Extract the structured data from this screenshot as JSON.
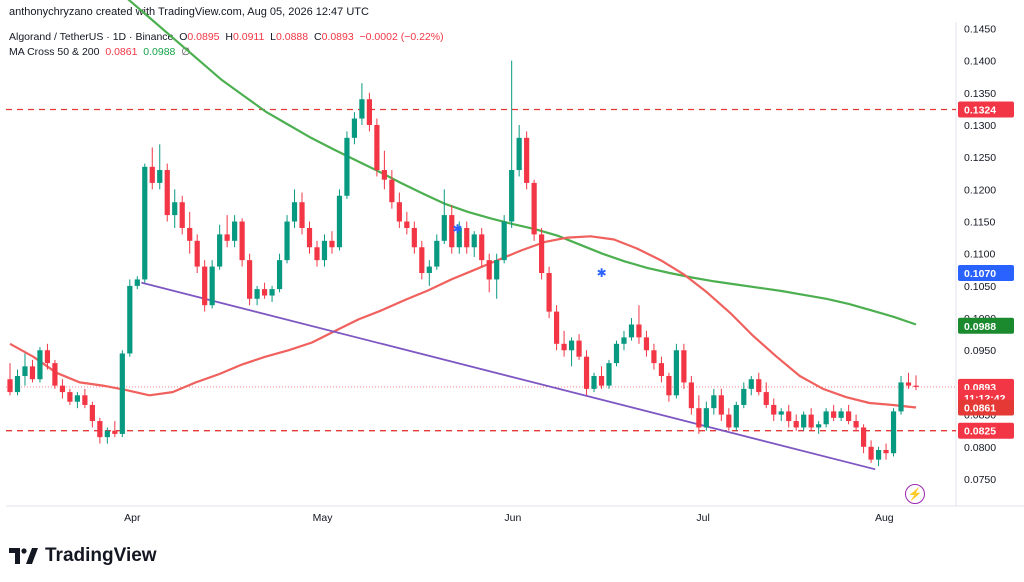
{
  "caption": "anthonychryzano created with TradingView.com, Aug 05, 2026 12:47 UTC",
  "legend": {
    "symbol": "Algorand / TetherUS · 1D · Binance",
    "o_label": "O",
    "o": "0.0895",
    "h_label": "H",
    "h": "0.0911",
    "l_label": "L",
    "l": "0.0888",
    "c_label": "C",
    "c": "0.0893",
    "change": "−0.0002 (−0.22%)",
    "ma_label": "MA Cross 50 & 200",
    "ma50": "0.0861",
    "ma200": "0.0988",
    "ma_suffix": "∅"
  },
  "brand": "TradingView",
  "colors": {
    "up": "#089981",
    "down": "#f23645",
    "ma50": "#f0605d",
    "ma200": "#4caf50",
    "trendline": "#7e57c2",
    "level": "#e53935",
    "cross_marker": "#2962ff",
    "last_price_tag": "#f23645",
    "ma50_tag": "#e53935",
    "ma200_tag": "#1b8a2f",
    "level_tag_1070": "#2962ff"
  },
  "chart_data": {
    "type": "candlestick",
    "y_axis_ticks": [
      "0.1450",
      "0.1400",
      "0.1350",
      "0.1300",
      "0.1250",
      "0.1200",
      "0.1150",
      "0.1100",
      "0.1050",
      "0.1000",
      "0.0950",
      "0.0900",
      "0.0850",
      "0.0800",
      "0.0750"
    ],
    "x_axis_ticks": [
      "Apr",
      "May",
      "Jun",
      "Jul",
      "Aug"
    ],
    "ylim": [
      0.0708,
      0.146
    ],
    "horizontal_levels": [
      0.1324,
      0.0825
    ],
    "price_tags": [
      {
        "label": "0.1324",
        "value": 0.1324,
        "color": "#f23645"
      },
      {
        "label": "0.1070",
        "value": 0.107,
        "color": "#2962ff"
      },
      {
        "label": "0.0988",
        "value": 0.0988,
        "color": "#1b8a2f"
      },
      {
        "label": "0.0893",
        "value": 0.0893,
        "color": "#f23645"
      },
      {
        "label": "11:12:42",
        "value": 0.0876,
        "color": "#f23645"
      },
      {
        "label": "0.0861",
        "value": 0.0861,
        "color": "#e53935"
      },
      {
        "label": "0.0825",
        "value": 0.0825,
        "color": "#f23645"
      }
    ],
    "trendline": [
      [
        0.0,
        0.1055
      ],
      [
        1.0,
        0.0765
      ]
    ],
    "ma200": [
      0.152,
      0.149,
      0.146,
      0.143,
      0.14,
      0.137,
      0.1345,
      0.132,
      0.13,
      0.128,
      0.1262,
      0.1245,
      0.1228,
      0.121,
      0.1193,
      0.1177,
      0.1165,
      0.1155,
      0.1146,
      0.1138,
      0.1128,
      0.1114,
      0.11,
      0.1088,
      0.1078,
      0.107,
      0.1063,
      0.1057,
      0.1052,
      0.1047,
      0.1042,
      0.1036,
      0.103,
      0.1022,
      0.1012,
      0.1002,
      0.099
    ],
    "ma50": [
      0.096,
      0.094,
      0.0915,
      0.09,
      0.0895,
      0.0888,
      0.088,
      0.0885,
      0.09,
      0.0913,
      0.0928,
      0.094,
      0.095,
      0.0962,
      0.098,
      0.0998,
      0.1012,
      0.1028,
      0.1043,
      0.106,
      0.1075,
      0.109,
      0.1105,
      0.1118,
      0.1125,
      0.1127,
      0.1122,
      0.1108,
      0.109,
      0.1068,
      0.104,
      0.1008,
      0.0972,
      0.094,
      0.091,
      0.089,
      0.0877,
      0.0868,
      0.0865,
      0.0861
    ],
    "cross_markers": [
      [
        0.494,
        0.1138
      ],
      [
        0.653,
        0.107
      ]
    ],
    "candles": [
      [
        0.0905,
        0.093,
        0.088,
        0.0885
      ],
      [
        0.0885,
        0.092,
        0.088,
        0.091
      ],
      [
        0.091,
        0.0945,
        0.0895,
        0.0925
      ],
      [
        0.0925,
        0.0935,
        0.09,
        0.0905
      ],
      [
        0.0905,
        0.0955,
        0.09,
        0.095
      ],
      [
        0.095,
        0.096,
        0.092,
        0.093
      ],
      [
        0.093,
        0.0935,
        0.089,
        0.0895
      ],
      [
        0.0895,
        0.0905,
        0.0875,
        0.0885
      ],
      [
        0.0885,
        0.089,
        0.0865,
        0.087
      ],
      [
        0.087,
        0.0885,
        0.086,
        0.088
      ],
      [
        0.088,
        0.089,
        0.086,
        0.0865
      ],
      [
        0.0865,
        0.087,
        0.083,
        0.084
      ],
      [
        0.084,
        0.0845,
        0.0805,
        0.0815
      ],
      [
        0.0815,
        0.083,
        0.0805,
        0.0825
      ],
      [
        0.0825,
        0.084,
        0.0815,
        0.082
      ],
      [
        0.082,
        0.095,
        0.0815,
        0.0945
      ],
      [
        0.0945,
        0.106,
        0.094,
        0.105
      ],
      [
        0.105,
        0.1065,
        0.1045,
        0.106
      ],
      [
        0.106,
        0.124,
        0.1055,
        0.1235
      ],
      [
        0.1235,
        0.1265,
        0.12,
        0.121
      ],
      [
        0.121,
        0.127,
        0.12,
        0.123
      ],
      [
        0.123,
        0.124,
        0.115,
        0.116
      ],
      [
        0.116,
        0.12,
        0.114,
        0.118
      ],
      [
        0.118,
        0.119,
        0.113,
        0.114
      ],
      [
        0.114,
        0.1165,
        0.11,
        0.112
      ],
      [
        0.112,
        0.113,
        0.107,
        0.108
      ],
      [
        0.108,
        0.109,
        0.101,
        0.102
      ],
      [
        0.102,
        0.109,
        0.1015,
        0.108
      ],
      [
        0.108,
        0.1145,
        0.1075,
        0.113
      ],
      [
        0.113,
        0.116,
        0.111,
        0.112
      ],
      [
        0.112,
        0.116,
        0.111,
        0.115
      ],
      [
        0.115,
        0.1155,
        0.108,
        0.109
      ],
      [
        0.109,
        0.11,
        0.102,
        0.103
      ],
      [
        0.103,
        0.105,
        0.102,
        0.1045
      ],
      [
        0.1045,
        0.1055,
        0.103,
        0.1035
      ],
      [
        0.1035,
        0.105,
        0.1025,
        0.1045
      ],
      [
        0.1045,
        0.11,
        0.104,
        0.109
      ],
      [
        0.109,
        0.116,
        0.1085,
        0.115
      ],
      [
        0.115,
        0.12,
        0.114,
        0.118
      ],
      [
        0.118,
        0.1195,
        0.113,
        0.114
      ],
      [
        0.114,
        0.115,
        0.11,
        0.111
      ],
      [
        0.111,
        0.112,
        0.108,
        0.109
      ],
      [
        0.109,
        0.113,
        0.108,
        0.112
      ],
      [
        0.112,
        0.1135,
        0.11,
        0.111
      ],
      [
        0.111,
        0.12,
        0.1105,
        0.119
      ],
      [
        0.119,
        0.129,
        0.1185,
        0.128
      ],
      [
        0.128,
        0.132,
        0.127,
        0.131
      ],
      [
        0.131,
        0.1365,
        0.13,
        0.134
      ],
      [
        0.134,
        0.135,
        0.129,
        0.13
      ],
      [
        0.13,
        0.131,
        0.122,
        0.123
      ],
      [
        0.123,
        0.126,
        0.12,
        0.1215
      ],
      [
        0.1215,
        0.123,
        0.117,
        0.118
      ],
      [
        0.118,
        0.1195,
        0.114,
        0.115
      ],
      [
        0.115,
        0.1165,
        0.113,
        0.114
      ],
      [
        0.114,
        0.115,
        0.11,
        0.111
      ],
      [
        0.111,
        0.112,
        0.106,
        0.107
      ],
      [
        0.107,
        0.109,
        0.105,
        0.108
      ],
      [
        0.108,
        0.113,
        0.1075,
        0.112
      ],
      [
        0.112,
        0.12,
        0.1115,
        0.116
      ],
      [
        0.116,
        0.1175,
        0.11,
        0.111
      ],
      [
        0.111,
        0.115,
        0.11,
        0.114
      ],
      [
        0.114,
        0.115,
        0.11,
        0.111
      ],
      [
        0.111,
        0.1135,
        0.1095,
        0.113
      ],
      [
        0.113,
        0.114,
        0.108,
        0.109
      ],
      [
        0.109,
        0.11,
        0.104,
        0.106
      ],
      [
        0.106,
        0.11,
        0.103,
        0.109
      ],
      [
        0.109,
        0.116,
        0.1085,
        0.115
      ],
      [
        0.115,
        0.14,
        0.114,
        0.123
      ],
      [
        0.123,
        0.13,
        0.122,
        0.128
      ],
      [
        0.128,
        0.129,
        0.12,
        0.121
      ],
      [
        0.121,
        0.1215,
        0.112,
        0.113
      ],
      [
        0.113,
        0.114,
        0.106,
        0.107
      ],
      [
        0.107,
        0.108,
        0.1,
        0.101
      ],
      [
        0.101,
        0.102,
        0.095,
        0.096
      ],
      [
        0.096,
        0.098,
        0.094,
        0.095
      ],
      [
        0.095,
        0.097,
        0.0925,
        0.0965
      ],
      [
        0.0965,
        0.0975,
        0.0935,
        0.094
      ],
      [
        0.094,
        0.095,
        0.088,
        0.089
      ],
      [
        0.089,
        0.0915,
        0.0885,
        0.091
      ],
      [
        0.091,
        0.0925,
        0.089,
        0.0895
      ],
      [
        0.0895,
        0.0935,
        0.089,
        0.093
      ],
      [
        0.093,
        0.0965,
        0.0925,
        0.096
      ],
      [
        0.096,
        0.098,
        0.095,
        0.097
      ],
      [
        0.097,
        0.1,
        0.0965,
        0.099
      ],
      [
        0.099,
        0.102,
        0.096,
        0.097
      ],
      [
        0.097,
        0.098,
        0.094,
        0.095
      ],
      [
        0.095,
        0.096,
        0.092,
        0.093
      ],
      [
        0.093,
        0.094,
        0.09,
        0.091
      ],
      [
        0.091,
        0.0915,
        0.087,
        0.088
      ],
      [
        0.088,
        0.096,
        0.0875,
        0.095
      ],
      [
        0.095,
        0.096,
        0.089,
        0.09
      ],
      [
        0.09,
        0.091,
        0.085,
        0.086
      ],
      [
        0.086,
        0.088,
        0.082,
        0.083
      ],
      [
        0.083,
        0.087,
        0.0825,
        0.086
      ],
      [
        0.086,
        0.089,
        0.085,
        0.088
      ],
      [
        0.088,
        0.089,
        0.084,
        0.085
      ],
      [
        0.085,
        0.086,
        0.0825,
        0.083
      ],
      [
        0.083,
        0.087,
        0.0825,
        0.0865
      ],
      [
        0.0865,
        0.09,
        0.086,
        0.089
      ],
      [
        0.089,
        0.091,
        0.088,
        0.0905
      ],
      [
        0.0905,
        0.0915,
        0.088,
        0.0885
      ],
      [
        0.0885,
        0.09,
        0.086,
        0.0865
      ],
      [
        0.0865,
        0.0875,
        0.084,
        0.085
      ],
      [
        0.085,
        0.086,
        0.084,
        0.0855
      ],
      [
        0.0855,
        0.0865,
        0.083,
        0.084
      ],
      [
        0.084,
        0.085,
        0.0825,
        0.083
      ],
      [
        0.083,
        0.0855,
        0.0825,
        0.085
      ],
      [
        0.085,
        0.086,
        0.0825,
        0.083
      ],
      [
        0.083,
        0.084,
        0.082,
        0.0835
      ],
      [
        0.0835,
        0.086,
        0.083,
        0.0855
      ],
      [
        0.0855,
        0.0865,
        0.084,
        0.0845
      ],
      [
        0.0845,
        0.086,
        0.084,
        0.0855
      ],
      [
        0.0855,
        0.0865,
        0.0835,
        0.084
      ],
      [
        0.084,
        0.085,
        0.0825,
        0.083
      ],
      [
        0.083,
        0.0835,
        0.079,
        0.08
      ],
      [
        0.08,
        0.081,
        0.0775,
        0.078
      ],
      [
        0.078,
        0.08,
        0.077,
        0.0795
      ],
      [
        0.0795,
        0.0805,
        0.078,
        0.079
      ],
      [
        0.079,
        0.086,
        0.0785,
        0.0855
      ],
      [
        0.0855,
        0.091,
        0.085,
        0.09
      ],
      [
        0.09,
        0.0915,
        0.089,
        0.0895
      ],
      [
        0.0895,
        0.0911,
        0.0888,
        0.0893
      ]
    ]
  }
}
